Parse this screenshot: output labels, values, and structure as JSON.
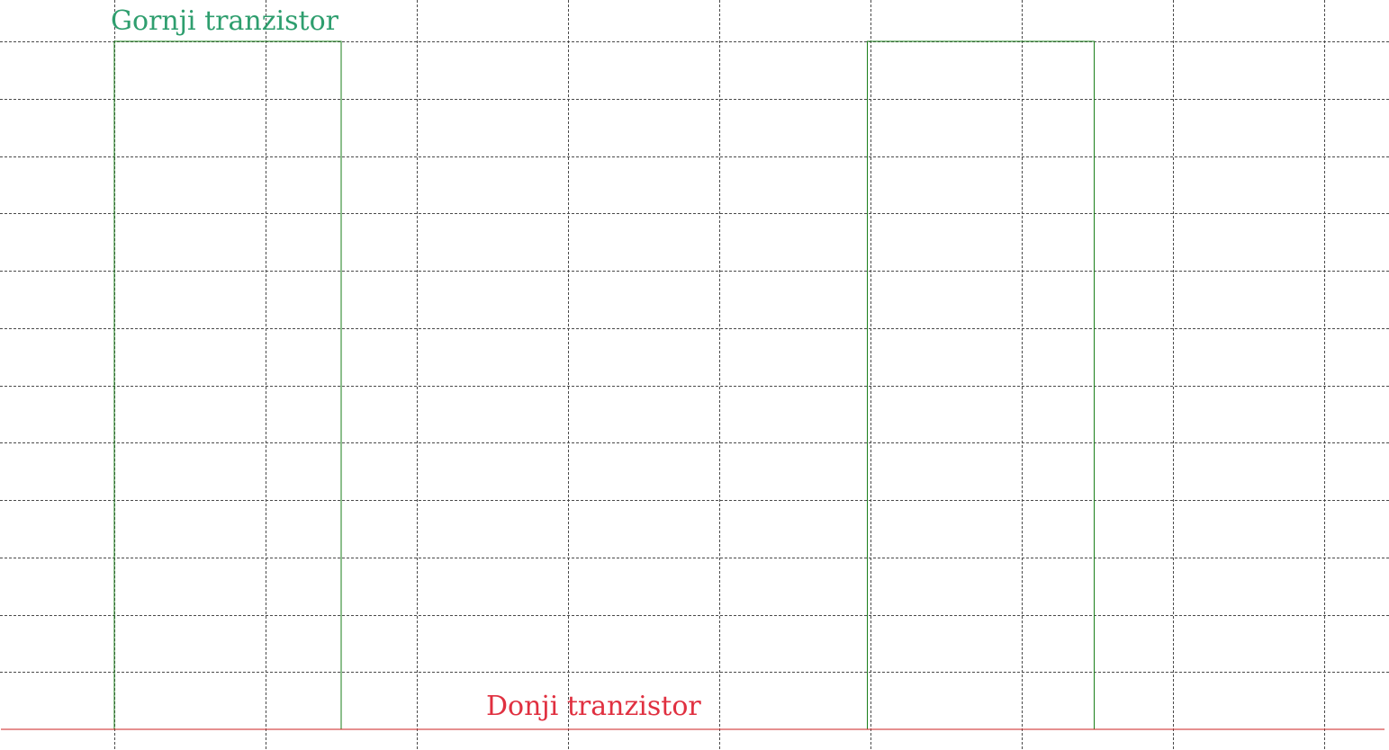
{
  "chart_data": {
    "type": "line",
    "title": "",
    "xlabel": "",
    "ylabel": "",
    "xlim": [
      0,
      9.15
    ],
    "ylim": [
      0,
      12
    ],
    "grid": true,
    "x_gridlines": [
      0.75,
      1.75,
      2.75,
      3.75,
      4.75,
      5.75,
      6.75,
      7.75,
      8.75
    ],
    "y_gridlines": [
      1,
      2,
      3,
      4,
      5,
      6,
      7,
      8,
      9,
      10,
      11,
      12
    ],
    "series": [
      {
        "name": "Gornji tranzistor",
        "color": "#1a7f1a",
        "label_color": "#2e9e6e",
        "x": [
          0,
          0.75,
          0.75,
          2.25,
          2.25,
          5.73,
          5.73,
          7.23,
          7.23,
          9.15
        ],
        "y": [
          0,
          0,
          12,
          12,
          0,
          0,
          12,
          12,
          0,
          0
        ]
      },
      {
        "name": "Donji tranzistor",
        "color": "#cc2222",
        "label_color": "#e03040",
        "x": [
          0,
          9.15
        ],
        "y": [
          0,
          0
        ]
      }
    ]
  }
}
